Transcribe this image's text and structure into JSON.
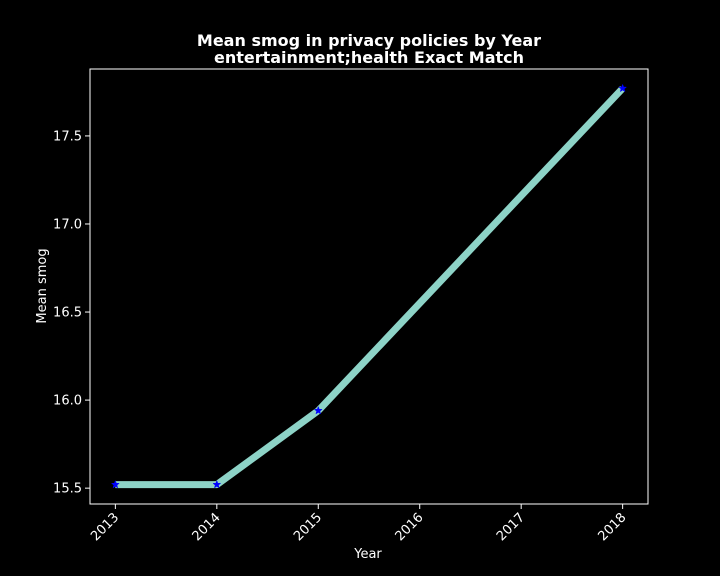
{
  "chart_data": {
    "type": "line",
    "title": "Mean smog in privacy policies by Year",
    "subtitle": "entertainment;health Exact Match",
    "xlabel": "Year",
    "ylabel": "Mean smog",
    "x": [
      2013,
      2014,
      2015,
      2018
    ],
    "series": [
      {
        "values": [
          15.52,
          15.52,
          15.94,
          17.77
        ],
        "line_color": "#8dd3c7",
        "marker": "star",
        "marker_color": "#0000ff"
      }
    ],
    "xticks": [
      "2013",
      "2014",
      "2015",
      "2016",
      "2017",
      "2018"
    ],
    "yticks": [
      "15.5",
      "16.0",
      "16.5",
      "17.0",
      "17.5"
    ],
    "xlim": [
      2012.75,
      2018.25
    ],
    "ylim": [
      15.41,
      17.88
    ],
    "grid": false,
    "background": "#000000",
    "foreground": "#ffffff"
  }
}
